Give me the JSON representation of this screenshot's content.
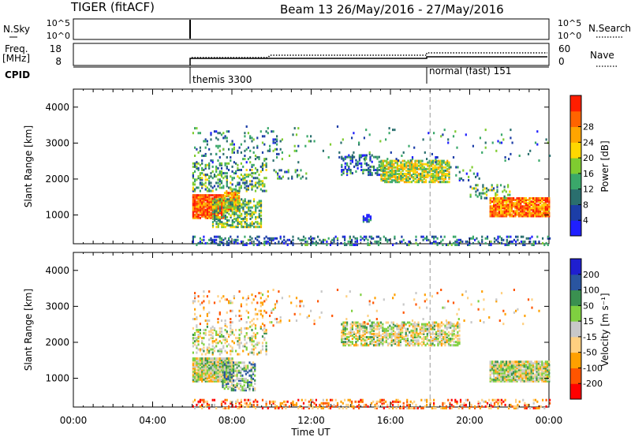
{
  "header": {
    "station_title": "TIGER (fitACF)",
    "beam_date": "Beam 13 26/May/2016 - 27/May/2016"
  },
  "top_panels": {
    "nsky": {
      "label": "N.Sky",
      "ticks_left": [
        "10^5",
        "10^0"
      ],
      "ticks_right": [
        "10^5",
        "10^0"
      ],
      "right_label": "N.Search"
    },
    "freq": {
      "label_line1": "Freq.",
      "label_line2": "[MHz]",
      "ticks_left": [
        "18",
        "8"
      ],
      "ticks_right": [
        "60",
        "0"
      ],
      "right_label": "Nave"
    },
    "cpid": {
      "label": "CPID",
      "entries": [
        {
          "time_h": 6.0,
          "text": "themis 3300"
        },
        {
          "time_h": 18.0,
          "text": "normal (fast) 151"
        }
      ]
    }
  },
  "chart_data": [
    {
      "type": "heatmap",
      "name": "power",
      "ylabel": "Slant Range [km]",
      "yticks": [
        "1000",
        "2000",
        "3000",
        "4000"
      ],
      "ylim": [
        200,
        4500
      ],
      "xlim_hours": [
        0,
        24
      ],
      "colorbar": {
        "label": "Power [dB]",
        "ticks": [
          "4",
          "8",
          "12",
          "16",
          "20",
          "24",
          "28"
        ],
        "colors": [
          "#1f1fff",
          "#1c3ea7",
          "#2a6f6e",
          "#3aa86a",
          "#7fcc30",
          "#ffd700",
          "#ffa500",
          "#ff6400",
          "#ff1e00"
        ]
      },
      "regions": [
        {
          "t0": 6.0,
          "t1": 7.6,
          "r0": 950,
          "r1": 1600,
          "level": 0.85,
          "density": 0.95
        },
        {
          "t0": 7.6,
          "t1": 8.4,
          "r0": 1150,
          "r1": 1700,
          "level": 0.7,
          "density": 0.85
        },
        {
          "t0": 7.0,
          "t1": 9.5,
          "r0": 700,
          "r1": 1500,
          "level": 0.45,
          "density": 0.55
        },
        {
          "t0": 6.0,
          "t1": 9.7,
          "r0": 1700,
          "r1": 2500,
          "level": 0.38,
          "density": 0.35
        },
        {
          "t0": 6.0,
          "t1": 10.5,
          "r0": 2500,
          "r1": 3400,
          "level": 0.3,
          "density": 0.1
        },
        {
          "t0": 10.0,
          "t1": 11.8,
          "r0": 2050,
          "r1": 2300,
          "level": 0.3,
          "density": 0.2
        },
        {
          "t0": 13.5,
          "t1": 15.5,
          "r0": 2150,
          "r1": 2700,
          "level": 0.25,
          "density": 0.35
        },
        {
          "t0": 15.5,
          "t1": 19.0,
          "r0": 1950,
          "r1": 2550,
          "level": 0.55,
          "density": 0.75
        },
        {
          "t0": 14.6,
          "t1": 15.0,
          "r0": 850,
          "r1": 1050,
          "level": 0.2,
          "density": 0.7
        },
        {
          "t0": 19.0,
          "t1": 20.5,
          "r0": 2000,
          "r1": 2400,
          "level": 0.3,
          "density": 0.15
        },
        {
          "t0": 21.0,
          "t1": 24.0,
          "r0": 1000,
          "r1": 1500,
          "level": 0.8,
          "density": 0.9
        },
        {
          "t0": 20.0,
          "t1": 22.0,
          "r0": 1500,
          "r1": 1900,
          "level": 0.4,
          "density": 0.3
        },
        {
          "t0": 6.0,
          "t1": 24.0,
          "r0": 200,
          "r1": 450,
          "level": 0.25,
          "density": 0.3
        },
        {
          "t0": 6.0,
          "t1": 24.0,
          "r0": 2500,
          "r1": 3500,
          "level": 0.3,
          "density": 0.025
        }
      ]
    },
    {
      "type": "heatmap",
      "name": "velocity",
      "ylabel": "Slant Range [km]",
      "yticks": [
        "1000",
        "2000",
        "3000",
        "4000"
      ],
      "ylim": [
        200,
        4500
      ],
      "xlim_hours": [
        0,
        24
      ],
      "xticks": [
        "00:00",
        "04:00",
        "08:00",
        "12:00",
        "16:00",
        "20:00",
        "00:00"
      ],
      "xlabel": "Time UT",
      "colorbar": {
        "label": "Velocity [m s⁻¹]",
        "ticks": [
          "-200",
          "-100",
          "-50",
          "-15",
          "15",
          "50",
          "100",
          "200"
        ],
        "colors": [
          "#ff0000",
          "#ff5500",
          "#ffa000",
          "#ffd080",
          "#c8c8c8",
          "#7fd040",
          "#3a9050",
          "#2a55a0",
          "#1f1fd0"
        ]
      },
      "regions": [
        {
          "t0": 6.0,
          "t1": 8.0,
          "r0": 950,
          "r1": 1600,
          "level": 0.5,
          "density": 0.95
        },
        {
          "t0": 7.5,
          "t1": 9.2,
          "r0": 700,
          "r1": 1500,
          "level": 0.64,
          "density": 0.6
        },
        {
          "t0": 6.0,
          "t1": 9.7,
          "r0": 1700,
          "r1": 2500,
          "level": 0.5,
          "density": 0.3
        },
        {
          "t0": 6.0,
          "t1": 10.5,
          "r0": 2500,
          "r1": 3450,
          "level": 0.35,
          "density": 0.1
        },
        {
          "t0": 13.5,
          "t1": 19.5,
          "r0": 1950,
          "r1": 2600,
          "level": 0.5,
          "density": 0.6
        },
        {
          "t0": 21.0,
          "t1": 24.0,
          "r0": 950,
          "r1": 1500,
          "level": 0.5,
          "density": 0.9
        },
        {
          "t0": 6.0,
          "t1": 24.0,
          "r0": 200,
          "r1": 450,
          "level": 0.25,
          "density": 0.3
        },
        {
          "t0": 6.0,
          "t1": 24.0,
          "r0": 2500,
          "r1": 3500,
          "level": 0.35,
          "density": 0.025
        }
      ]
    }
  ]
}
